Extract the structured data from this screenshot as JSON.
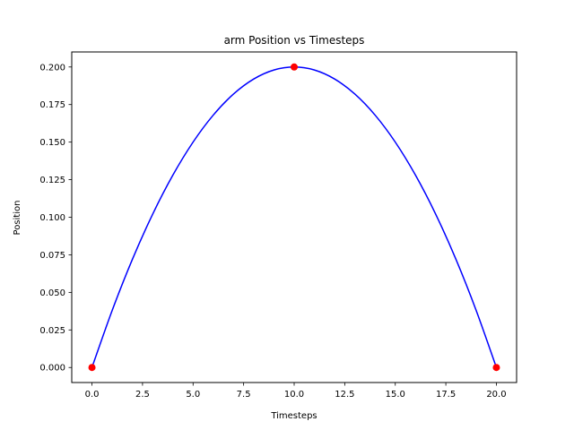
{
  "chart_data": {
    "type": "line",
    "title": "arm Position vs Timesteps",
    "xlabel": "Timesteps",
    "ylabel": "Position",
    "xlim": [
      -1.0,
      21.0
    ],
    "ylim": [
      -0.01,
      0.21
    ],
    "grid": false,
    "xticks": [
      0.0,
      2.5,
      5.0,
      7.5,
      10.0,
      12.5,
      15.0,
      17.5,
      20.0
    ],
    "xtick_labels": [
      "0.0",
      "2.5",
      "5.0",
      "7.5",
      "10.0",
      "12.5",
      "15.0",
      "17.5",
      "20.0"
    ],
    "yticks": [
      0.0,
      0.025,
      0.05,
      0.075,
      0.1,
      0.125,
      0.15,
      0.175,
      0.2
    ],
    "ytick_labels": [
      "0.000",
      "0.025",
      "0.050",
      "0.075",
      "0.100",
      "0.125",
      "0.150",
      "0.175",
      "0.200"
    ],
    "series": [
      {
        "kind": "line",
        "color": "#0000ff",
        "x": [
          0,
          1,
          2,
          3,
          4,
          5,
          6,
          7,
          8,
          9,
          10,
          11,
          12,
          13,
          14,
          15,
          16,
          17,
          18,
          19,
          20
        ],
        "y": [
          0.0,
          0.038,
          0.072,
          0.102,
          0.128,
          0.15,
          0.168,
          0.182,
          0.192,
          0.198,
          0.2,
          0.198,
          0.192,
          0.182,
          0.168,
          0.15,
          0.128,
          0.102,
          0.072,
          0.038,
          0.0
        ]
      },
      {
        "kind": "points",
        "color": "#ff0000",
        "x": [
          0,
          10,
          20
        ],
        "y": [
          0.0,
          0.2,
          0.0
        ]
      }
    ]
  }
}
